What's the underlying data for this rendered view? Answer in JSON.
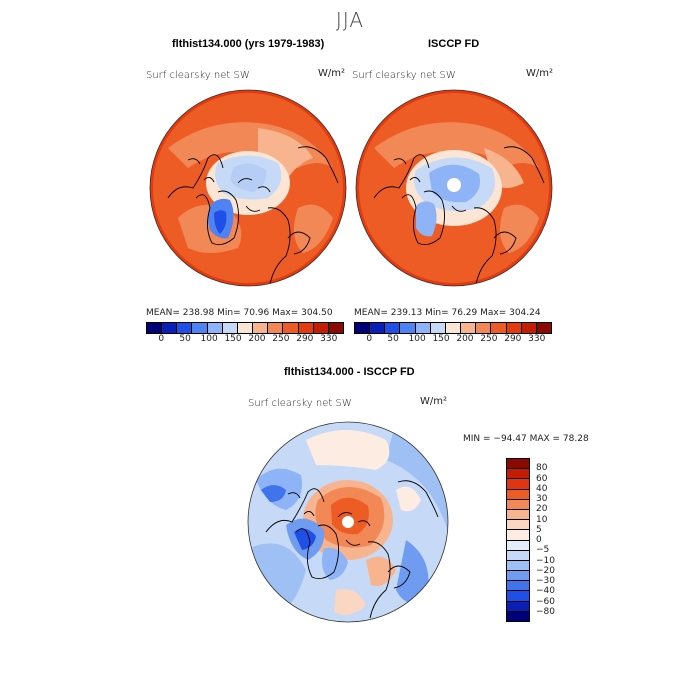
{
  "season": "JJA",
  "panel_left": {
    "title": "flthist134.000 (yrs 1979-1983)",
    "variable": "Surf clearsky net SW",
    "units": "W/m²",
    "stats": "MEAN= 238.98  Min=  70.96  Max= 304.50"
  },
  "panel_right": {
    "title": "ISCCP FD",
    "variable": "Surf clearsky net SW",
    "units": "W/m²",
    "stats": "MEAN= 239.13  Min=  76.29  Max= 304.24"
  },
  "colorbar_top": {
    "labels": [
      "0",
      "50",
      "100",
      "150",
      "200",
      "250",
      "290",
      "330"
    ],
    "colors": [
      "#00007a",
      "#0a1fb5",
      "#1f4fe6",
      "#4f82f2",
      "#8eb4f7",
      "#c6daf7",
      "#fbe6d6",
      "#f7b48f",
      "#f28856",
      "#ee5c26",
      "#e53a0e",
      "#c41d05",
      "#8a0a02"
    ]
  },
  "panel_diff": {
    "title": "flthist134.000 - ISCCP FD",
    "variable": "Surf clearsky net SW",
    "units": "W/m²",
    "minmax": "MIN = −94.47 MAX =  78.28"
  },
  "colorbar_diff": {
    "labels": [
      "80",
      "60",
      "40",
      "30",
      "20",
      "10",
      "5",
      "0",
      "−5",
      "−10",
      "−20",
      "−30",
      "−40",
      "−60",
      "−80"
    ],
    "colors": [
      "#8a0a02",
      "#c41d05",
      "#e03510",
      "#ee5c26",
      "#f28856",
      "#f7b48f",
      "#fbd6c2",
      "#fdece2",
      "#e4edf8",
      "#c6daf7",
      "#9fc0f4",
      "#6f9cf0",
      "#3f74ea",
      "#1f4fe6",
      "#0a1fb5",
      "#00007a"
    ]
  }
}
